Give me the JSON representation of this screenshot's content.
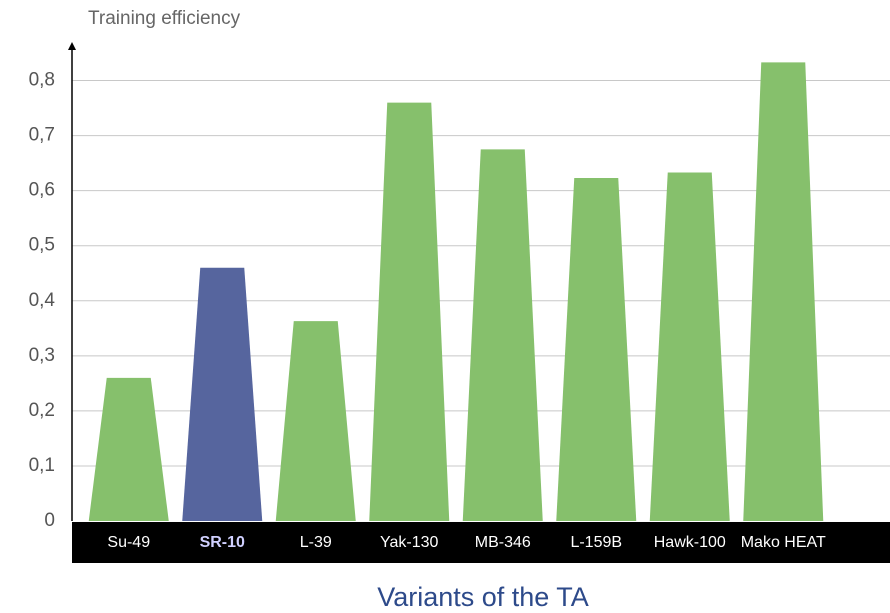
{
  "chart_data": {
    "type": "bar",
    "y_label": "Training efficiency",
    "x_label": "Variants of the TA",
    "categories": [
      "Su-49",
      "SR-10",
      "L-39",
      "Yak-130",
      "MB-346",
      "L-159B",
      "Hawk-100",
      "Mako HEAT"
    ],
    "values": [
      0.26,
      0.46,
      0.363,
      0.76,
      0.675,
      0.623,
      0.633,
      0.833
    ],
    "colors": [
      "#86c06c",
      "#56659e",
      "#86c06c",
      "#86c06c",
      "#86c06c",
      "#86c06c",
      "#86c06c",
      "#86c06c"
    ],
    "highlight_index": 1,
    "ylim": [
      0,
      0.87
    ],
    "yticks": [
      0,
      {
        "value": 0.1,
        "label": "0,1"
      },
      {
        "value": 0.2,
        "label": "0,2"
      },
      {
        "value": 0.3,
        "label": "0,3"
      },
      {
        "value": 0.4,
        "label": "0,4"
      },
      {
        "value": 0.5,
        "label": "0,5"
      },
      {
        "value": 0.6,
        "label": "0,6"
      },
      {
        "value": 0.7,
        "label": "0,7"
      },
      {
        "value": 0.8,
        "label": "0,8"
      }
    ],
    "grid": true
  }
}
